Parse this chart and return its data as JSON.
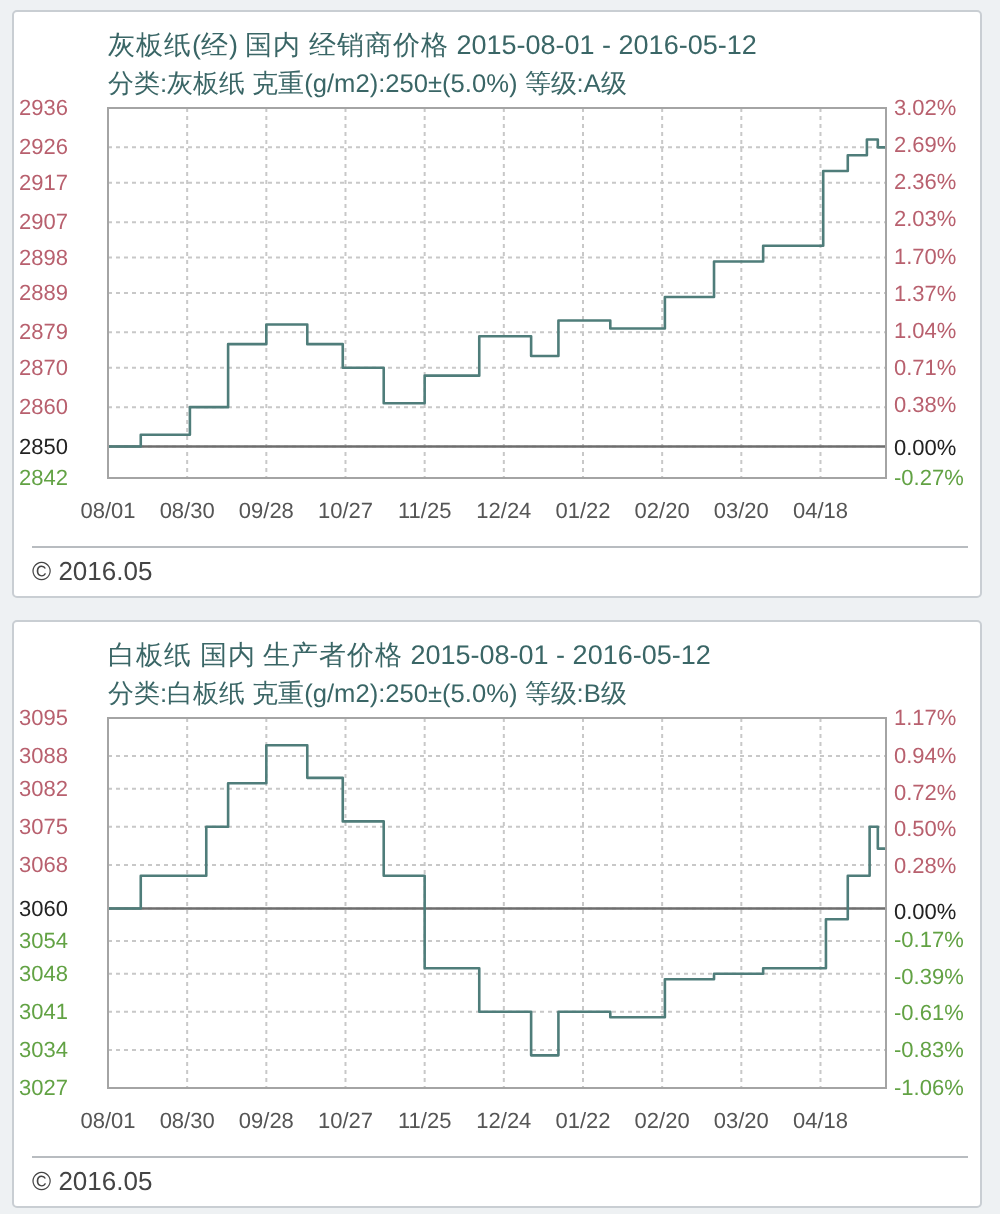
{
  "chart_data": [
    {
      "type": "step",
      "title": "灰板纸(经) 国内 经销商价格 2015-08-01 - 2016-05-12",
      "subtitle": "分类:灰板纸 克重(g/m2):250±(5.0%) 等级:A级",
      "x": [
        "2015-08-01",
        "2015-08-13",
        "2015-08-31",
        "2015-09-14",
        "2015-09-28",
        "2015-10-13",
        "2015-10-26",
        "2015-11-10",
        "2015-11-25",
        "2015-12-15",
        "2016-01-03",
        "2016-01-13",
        "2016-02-01",
        "2016-02-21",
        "2016-03-10",
        "2016-03-28",
        "2016-04-19",
        "2016-04-28",
        "2016-05-05",
        "2016-05-09",
        "2016-05-12"
      ],
      "series": [
        {
          "color": "#4f7d7a",
          "values": [
            2850,
            2853,
            2860,
            2876,
            2881,
            2876,
            2870,
            2861,
            2868,
            2878,
            2873,
            2882,
            2880,
            2888,
            2897,
            2901,
            2920,
            2924,
            2928,
            2926,
            2926
          ]
        }
      ],
      "xlim": [
        "2015-08-01",
        "2016-05-12"
      ],
      "xticks": [
        {
          "value": "2015-08-01",
          "label": "08/01"
        },
        {
          "value": "2015-08-30",
          "label": "08/30"
        },
        {
          "value": "2015-09-28",
          "label": "09/28"
        },
        {
          "value": "2015-10-27",
          "label": "10/27"
        },
        {
          "value": "2015-11-25",
          "label": "11/25"
        },
        {
          "value": "2015-12-24",
          "label": "12/24"
        },
        {
          "value": "2016-01-22",
          "label": "01/22"
        },
        {
          "value": "2016-02-20",
          "label": "02/20"
        },
        {
          "value": "2016-03-20",
          "label": "03/20"
        },
        {
          "value": "2016-04-18",
          "label": "04/18"
        }
      ],
      "ylim": [
        2842,
        2936
      ],
      "yticks": [
        2936,
        2926,
        2917,
        2907,
        2898,
        2889,
        2879,
        2870,
        2860,
        2850,
        2842
      ],
      "y2lim": [
        -0.27,
        3.02
      ],
      "y2ticks": [
        {
          "value": 3.02,
          "label": "3.02%"
        },
        {
          "value": 2.69,
          "label": "2.69%"
        },
        {
          "value": 2.36,
          "label": "2.36%"
        },
        {
          "value": 2.03,
          "label": "2.03%"
        },
        {
          "value": 1.7,
          "label": "1.70%"
        },
        {
          "value": 1.37,
          "label": "1.37%"
        },
        {
          "value": 1.04,
          "label": "1.04%"
        },
        {
          "value": 0.71,
          "label": "0.71%"
        },
        {
          "value": 0.38,
          "label": "0.38%"
        },
        {
          "value": 0,
          "label": "0.00%"
        },
        {
          "value": -0.27,
          "label": "-0.27%"
        }
      ],
      "grid": true,
      "ref_lines": [
        {
          "axis": "y",
          "value": 2850,
          "color": "#6e6e6e"
        }
      ],
      "annotations": [
        "© 2016.05"
      ]
    },
    {
      "type": "step",
      "title": "白板纸 国内 生产者价格 2015-08-01 - 2016-05-12",
      "subtitle": "分类:白板纸 克重(g/m2):250±(5.0%) 等级:B级",
      "x": [
        "2015-08-01",
        "2015-08-13",
        "2015-09-06",
        "2015-09-14",
        "2015-09-28",
        "2015-10-13",
        "2015-10-26",
        "2015-11-10",
        "2015-11-25",
        "2015-12-15",
        "2016-01-03",
        "2016-01-13",
        "2016-02-01",
        "2016-02-21",
        "2016-03-10",
        "2016-03-28",
        "2016-04-20",
        "2016-04-28",
        "2016-05-06",
        "2016-05-09",
        "2016-05-12"
      ],
      "series": [
        {
          "color": "#4f7d7a",
          "values": [
            3060,
            3066,
            3075,
            3083,
            3090,
            3084,
            3076,
            3066,
            3049,
            3041,
            3033,
            3041,
            3040,
            3047,
            3048,
            3049,
            3058,
            3066,
            3075,
            3071,
            3071
          ]
        }
      ],
      "xlim": [
        "2015-08-01",
        "2016-05-12"
      ],
      "xticks": [
        {
          "value": "2015-08-01",
          "label": "08/01"
        },
        {
          "value": "2015-08-30",
          "label": "08/30"
        },
        {
          "value": "2015-09-28",
          "label": "09/28"
        },
        {
          "value": "2015-10-27",
          "label": "10/27"
        },
        {
          "value": "2015-11-25",
          "label": "11/25"
        },
        {
          "value": "2015-12-24",
          "label": "12/24"
        },
        {
          "value": "2016-01-22",
          "label": "01/22"
        },
        {
          "value": "2016-02-20",
          "label": "02/20"
        },
        {
          "value": "2016-03-20",
          "label": "03/20"
        },
        {
          "value": "2016-04-18",
          "label": "04/18"
        }
      ],
      "ylim": [
        3027,
        3095
      ],
      "yticks": [
        3095,
        3088,
        3082,
        3075,
        3068,
        3060,
        3054,
        3048,
        3041,
        3034,
        3027
      ],
      "y2lim": [
        -1.06,
        1.17
      ],
      "y2ticks": [
        {
          "value": 1.17,
          "label": "1.17%"
        },
        {
          "value": 0.94,
          "label": "0.94%"
        },
        {
          "value": 0.72,
          "label": "0.72%"
        },
        {
          "value": 0.5,
          "label": "0.50%"
        },
        {
          "value": 0.28,
          "label": "0.28%"
        },
        {
          "value": 0,
          "label": "0.00%"
        },
        {
          "value": -0.17,
          "label": "-0.17%"
        },
        {
          "value": -0.39,
          "label": "-0.39%"
        },
        {
          "value": -0.61,
          "label": "-0.61%"
        },
        {
          "value": -0.83,
          "label": "-0.83%"
        },
        {
          "value": -1.06,
          "label": "-1.06%"
        }
      ],
      "grid": true,
      "ref_lines": [
        {
          "axis": "y",
          "value": 3060,
          "color": "#6e6e6e"
        }
      ],
      "annotations": [
        "© 2016.05"
      ]
    }
  ]
}
